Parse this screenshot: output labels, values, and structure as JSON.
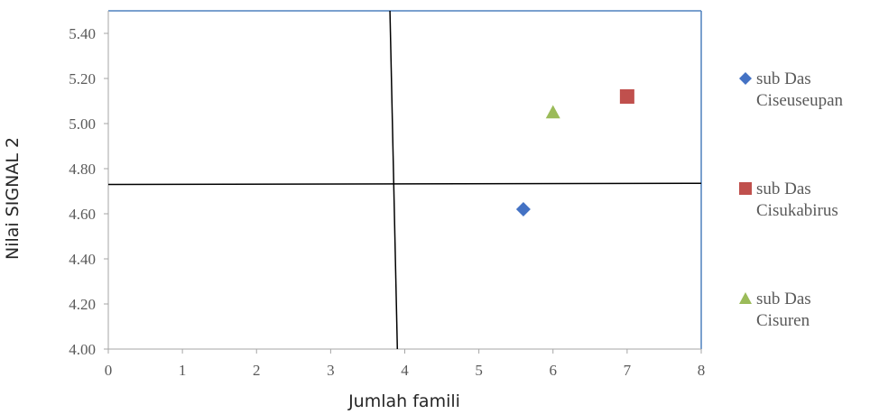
{
  "chart_data": {
    "type": "scatter",
    "title": "",
    "xlabel": "Jumlah famili",
    "ylabel": "Nilai SIGNAL 2",
    "xlim": [
      0,
      8
    ],
    "ylim": [
      4.0,
      5.5
    ],
    "x_ticks": [
      "0",
      "1",
      "2",
      "3",
      "4",
      "5",
      "6",
      "7",
      "8"
    ],
    "y_ticks": [
      "4.00",
      "4.20",
      "4.40",
      "4.60",
      "4.80",
      "5.00",
      "5.20",
      "5.40"
    ],
    "grid": false,
    "legend_position": "right",
    "series": [
      {
        "name_line1": "sub Das",
        "name_line2": "Ciseuseupan",
        "marker": "diamond",
        "color": "#4472C4",
        "points": [
          {
            "x": 5.6,
            "y": 4.62
          }
        ]
      },
      {
        "name_line1": "sub Das",
        "name_line2": "Cisukabirus",
        "marker": "square",
        "color": "#C0504D",
        "points": [
          {
            "x": 7.0,
            "y": 5.12
          }
        ]
      },
      {
        "name_line1": "sub Das",
        "name_line2": "Cisuren",
        "marker": "triangle",
        "color": "#9BBB59",
        "points": [
          {
            "x": 6.0,
            "y": 5.05
          }
        ]
      }
    ],
    "reference_lines": [
      {
        "orientation": "vertical",
        "from": {
          "x": 3.8,
          "y": 5.5
        },
        "to": {
          "x": 3.9,
          "y": 4.0
        }
      },
      {
        "orientation": "horizontal",
        "from": {
          "x": 0,
          "y": 4.73
        },
        "to": {
          "x": 8,
          "y": 4.735
        }
      }
    ]
  }
}
